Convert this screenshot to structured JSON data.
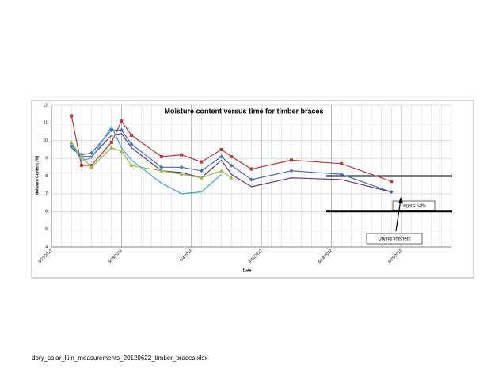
{
  "chart_data": {
    "type": "line",
    "title": "Moisture content versus time for timber braces",
    "x_label": "Date",
    "y_label": "Moisture Content (%)",
    "x": [
      "5/23/2012",
      "5/24/2012",
      "5/25/2012",
      "5/27/2012",
      "5/28/2012",
      "5/29/2012",
      "6/1/2012",
      "6/3/2012",
      "6/5/2012",
      "6/7/2012",
      "6/8/2012",
      "6/10/2012",
      "6/14/2012",
      "6/19/2012",
      "6/24/2012"
    ],
    "series": [
      {
        "color": "#b04040",
        "marker": "square",
        "values": [
          11.4,
          8.6,
          8.6,
          9.9,
          11.1,
          10.3,
          9.1,
          9.2,
          8.8,
          9.5,
          9.1,
          8.4,
          8.9,
          8.7,
          7.7
        ]
      },
      {
        "color": "#4a6fb5",
        "marker": "diamond",
        "values": [
          9.7,
          9.2,
          9.3,
          10.6,
          10.6,
          9.8,
          8.5,
          8.5,
          8.3,
          9.1,
          8.6,
          7.8,
          8.3,
          8.1,
          7.1
        ]
      },
      {
        "color": "#5a3f8a",
        "marker": "none",
        "values": [
          9.6,
          9.1,
          9.1,
          10.3,
          10.4,
          9.6,
          8.3,
          8.2,
          7.9,
          8.9,
          8.1,
          7.4,
          7.9,
          7.8,
          7.1
        ]
      },
      {
        "color": "#9ab84a",
        "marker": "triangle",
        "values": [
          9.9,
          9.1,
          8.5,
          9.6,
          9.4,
          8.6,
          8.3,
          8.1,
          7.9,
          8.3,
          7.9,
          null,
          null,
          null,
          null
        ]
      },
      {
        "color": "#4ba3c8",
        "marker": "none",
        "values": [
          9.8,
          8.9,
          9.0,
          10.8,
          9.6,
          8.9,
          7.6,
          7.0,
          7.1,
          8.1,
          null,
          null,
          null,
          null,
          null
        ]
      }
    ],
    "xlim": [
      "5/21/2012",
      "6/30/2012"
    ],
    "xticks": [
      "5/21/2012",
      "5/28/2012",
      "6/4/2012",
      "6/11/2012",
      "6/18/2012",
      "6/25/2012"
    ],
    "ylim": [
      4,
      12
    ],
    "yticks": [
      4,
      5,
      6,
      7,
      8,
      9,
      10,
      11,
      12
    ],
    "grid": true,
    "hlines": [
      8,
      6
    ],
    "annotations": [
      "Target = 6-8%",
      "Drying finished!"
    ]
  },
  "footer": "dory_solar_kiln_measurements_20120622_timber_braces.xlsx"
}
